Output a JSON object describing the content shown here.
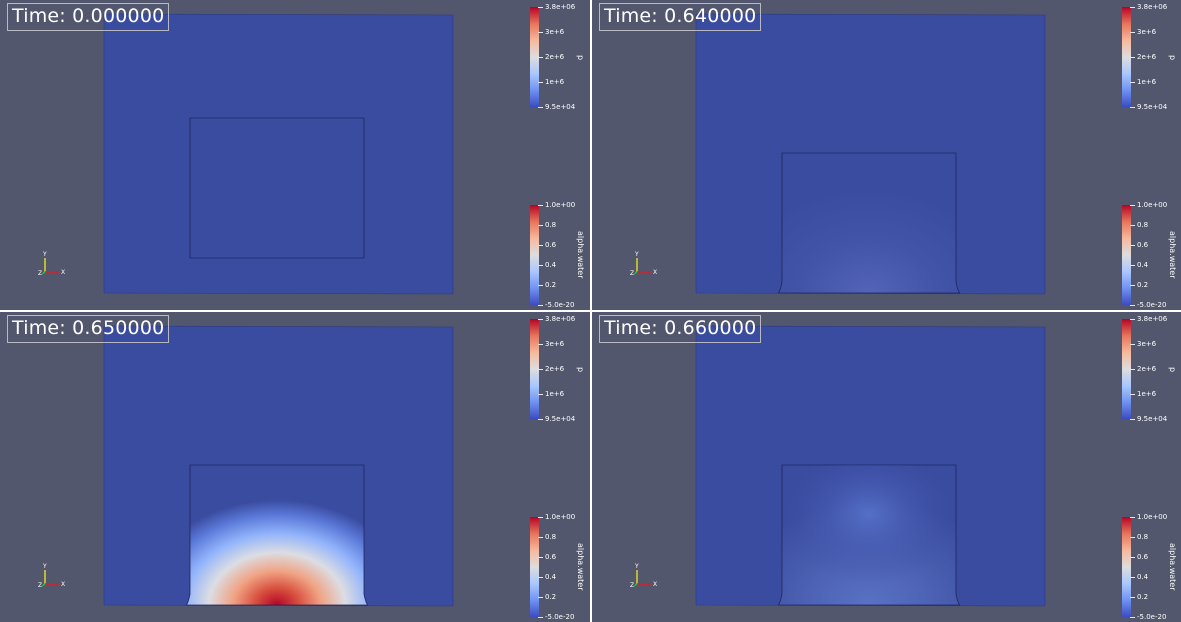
{
  "panels": [
    {
      "id": "tl",
      "time_label": "Time: 0.000000",
      "pulse": 0.0,
      "pressure_bar": {
        "title": "p",
        "max": "3.8e+06",
        "ticks": [
          "3e+6",
          "2e+6",
          "1e+6"
        ],
        "min": "9.5e+04"
      },
      "alpha_bar": {
        "title": "alpha.water",
        "max": "1.0e+00",
        "ticks": [
          "0.8",
          "0.6",
          "0.4",
          "0.2"
        ],
        "min": "-5.0e-20"
      },
      "axes": {
        "y": "Y",
        "z": "Z",
        "x": "X"
      }
    },
    {
      "id": "tr",
      "time_label": "Time: 0.640000",
      "pulse": 0.07,
      "pressure_bar": {
        "title": "p",
        "max": "3.8e+06",
        "ticks": [
          "3e+6",
          "2e+6",
          "1e+6"
        ],
        "min": "9.5e+04"
      },
      "alpha_bar": {
        "title": "alpha.water",
        "max": "1.0e+00",
        "ticks": [
          "0.8",
          "0.6",
          "0.4",
          "0.2"
        ],
        "min": "-5.0e-20"
      },
      "axes": {
        "y": "Y",
        "z": "Z",
        "x": "X"
      }
    },
    {
      "id": "bl",
      "time_label": "Time: 0.650000",
      "pulse": 1.0,
      "pressure_bar": {
        "title": "p",
        "max": "3.8e+06",
        "ticks": [
          "3e+6",
          "2e+6",
          "1e+6"
        ],
        "min": "9.5e+04"
      },
      "alpha_bar": {
        "title": "alpha.water",
        "max": "1.0e+00",
        "ticks": [
          "0.8",
          "0.6",
          "0.4",
          "0.2"
        ],
        "min": "-5.0e-20"
      },
      "axes": {
        "y": "Y",
        "z": "Z",
        "x": "X"
      }
    },
    {
      "id": "br",
      "time_label": "Time: 0.660000",
      "pulse": 0.12,
      "pressure_bar": {
        "title": "p",
        "max": "3.8e+06",
        "ticks": [
          "3e+6",
          "2e+6",
          "1e+6"
        ],
        "min": "9.5e+04"
      },
      "alpha_bar": {
        "title": "alpha.water",
        "max": "1.0e+00",
        "ticks": [
          "0.8",
          "0.6",
          "0.4",
          "0.2"
        ],
        "min": "-5.0e-20"
      },
      "axes": {
        "y": "Y",
        "z": "Z",
        "x": "X"
      }
    }
  ],
  "colors": {
    "viewport_bg": "#52576e",
    "field_low": "#3a4ca0",
    "colormap": [
      "#3b4cc0",
      "#6f92f3",
      "#aac7fd",
      "#dddddd",
      "#f7b89c",
      "#e7745b",
      "#b40426"
    ]
  }
}
